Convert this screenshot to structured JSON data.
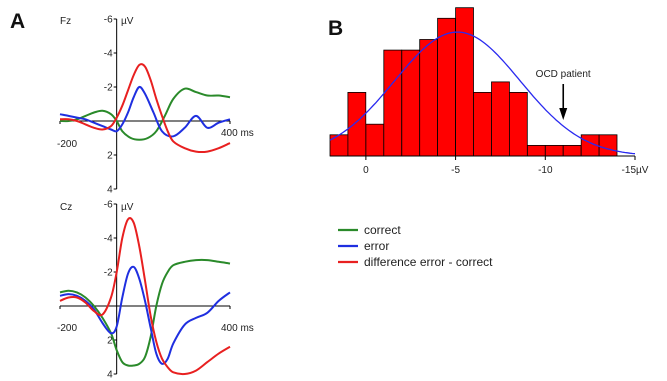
{
  "figure": {
    "panel_a_letter": "A",
    "panel_b_letter": "B"
  },
  "chart_data": [
    {
      "type": "line",
      "panel": "A",
      "electrode": "Fz",
      "unit": "µV",
      "x_unit_label": "400 ms",
      "x_tick_left": "-200",
      "y_ticks": [
        "-6",
        "-4",
        "-2",
        "2",
        "4"
      ],
      "y_tick_values": [
        -6,
        -4,
        -2,
        2,
        4
      ],
      "xlim": [
        -200,
        400
      ],
      "ylim": [
        -6,
        4
      ],
      "y_inverted": true,
      "series": [
        {
          "name": "correct",
          "color": "#2a8a2a",
          "x": [
            -200,
            -170,
            -140,
            -110,
            -80,
            -50,
            -20,
            0,
            20,
            50,
            80,
            110,
            140,
            170,
            200,
            240,
            280,
            320,
            360,
            400
          ],
          "y": [
            0.0,
            0.0,
            -0.1,
            -0.3,
            -0.5,
            -0.6,
            -0.4,
            0.0,
            0.6,
            1.0,
            1.1,
            1.0,
            0.6,
            -0.3,
            -1.3,
            -1.9,
            -1.7,
            -1.5,
            -1.5,
            -1.4
          ]
        },
        {
          "name": "error",
          "color": "#1f2fe0",
          "x": [
            -200,
            -170,
            -140,
            -110,
            -80,
            -50,
            -20,
            0,
            20,
            40,
            60,
            80,
            100,
            130,
            160,
            200,
            240,
            280,
            320,
            360,
            400
          ],
          "y": [
            -0.4,
            -0.3,
            -0.2,
            -0.1,
            0.1,
            0.3,
            0.5,
            0.6,
            0.2,
            -0.5,
            -1.4,
            -2.0,
            -1.6,
            -0.5,
            0.6,
            0.9,
            0.4,
            -0.3,
            0.4,
            0.1,
            -0.1
          ]
        },
        {
          "name": "difference error - correct",
          "color": "#e82020",
          "x": [
            -200,
            -170,
            -140,
            -110,
            -80,
            -50,
            -20,
            0,
            20,
            40,
            60,
            80,
            100,
            120,
            140,
            160,
            180,
            200,
            240,
            280,
            320,
            360,
            400
          ],
          "y": [
            -0.1,
            -0.1,
            0.0,
            0.2,
            0.4,
            0.5,
            0.3,
            -0.2,
            -0.9,
            -1.8,
            -2.7,
            -3.3,
            -3.2,
            -2.4,
            -1.3,
            -0.3,
            0.6,
            1.2,
            1.6,
            1.8,
            1.8,
            1.6,
            1.3
          ]
        }
      ]
    },
    {
      "type": "line",
      "panel": "A",
      "electrode": "Cz",
      "unit": "µV",
      "x_unit_label": "400 ms",
      "x_tick_left": "-200",
      "y_ticks": [
        "-6",
        "-4",
        "-2",
        "2",
        "4"
      ],
      "y_tick_values": [
        -6,
        -4,
        -2,
        2,
        4
      ],
      "xlim": [
        -200,
        400
      ],
      "ylim": [
        -6,
        4
      ],
      "y_inverted": true,
      "series": [
        {
          "name": "correct",
          "color": "#2a8a2a",
          "x": [
            -200,
            -170,
            -140,
            -110,
            -80,
            -50,
            -20,
            0,
            20,
            40,
            60,
            80,
            100,
            120,
            140,
            160,
            180,
            200,
            240,
            280,
            320,
            360,
            400
          ],
          "y": [
            -0.8,
            -0.9,
            -0.8,
            -0.5,
            0.0,
            0.7,
            1.6,
            2.6,
            3.3,
            3.5,
            3.5,
            3.4,
            3.0,
            1.8,
            0.0,
            -1.3,
            -2.0,
            -2.4,
            -2.6,
            -2.7,
            -2.7,
            -2.6,
            -2.5
          ]
        },
        {
          "name": "error",
          "color": "#1f2fe0",
          "x": [
            -200,
            -170,
            -140,
            -110,
            -80,
            -50,
            -20,
            0,
            20,
            40,
            60,
            80,
            100,
            120,
            140,
            160,
            180,
            200,
            240,
            280,
            320,
            360,
            400
          ],
          "y": [
            -0.6,
            -0.7,
            -0.6,
            -0.3,
            0.2,
            1.0,
            1.6,
            1.2,
            -0.5,
            -1.9,
            -2.3,
            -1.6,
            -0.3,
            1.3,
            2.8,
            3.4,
            3.1,
            2.2,
            1.1,
            0.7,
            0.4,
            -0.3,
            -0.8
          ]
        },
        {
          "name": "difference error - correct",
          "color": "#e82020",
          "x": [
            -200,
            -170,
            -140,
            -110,
            -80,
            -50,
            -20,
            0,
            20,
            40,
            60,
            80,
            100,
            120,
            140,
            160,
            180,
            200,
            240,
            280,
            320,
            360,
            400
          ],
          "y": [
            -0.3,
            -0.5,
            -0.5,
            -0.2,
            0.3,
            0.5,
            -0.5,
            -2.0,
            -4.0,
            -5.1,
            -4.9,
            -3.5,
            -1.5,
            0.6,
            2.1,
            3.1,
            3.6,
            3.9,
            4.0,
            3.8,
            3.3,
            2.8,
            2.4
          ]
        }
      ]
    },
    {
      "type": "bar",
      "panel": "B",
      "x_tick_labels": [
        "0",
        "-5",
        "-10",
        "-15µV"
      ],
      "x_tick_values": [
        0,
        -5,
        -10,
        -15
      ],
      "xlim": [
        2.0,
        -15.0
      ],
      "ylim": [
        0,
        13.5
      ],
      "bin_width": 1.0,
      "bin_edges": [
        2.0,
        1.0,
        0.0,
        -1.0,
        -2.0,
        -3.0,
        -4.0,
        -5.0,
        -6.0,
        -7.0,
        -8.0,
        -9.0,
        -10.0,
        -11.0,
        -12.0,
        -13.0,
        -14.0
      ],
      "counts": [
        2,
        6,
        3,
        10,
        10,
        11,
        13,
        14,
        6,
        7,
        6,
        1,
        1,
        1,
        2,
        2
      ],
      "bar_color": "#ff0000",
      "fit_curve": {
        "type": "normal",
        "color": "#2a2af0",
        "mean": -5.1,
        "sd": 3.5,
        "peak": 11.7
      },
      "annotation": {
        "text": "OCD patient",
        "x": -11.0
      }
    }
  ],
  "legend": {
    "entries": [
      {
        "label": "correct",
        "color": "#2a8a2a"
      },
      {
        "label": "error",
        "color": "#1f2fe0"
      },
      {
        "label": "difference error - correct",
        "color": "#e82020"
      }
    ]
  }
}
